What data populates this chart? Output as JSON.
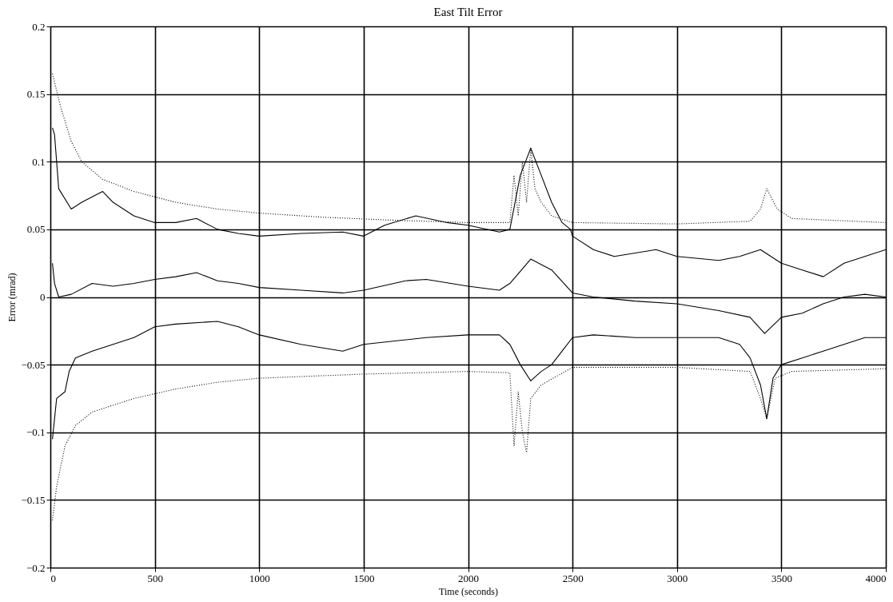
{
  "chart_data": {
    "type": "line",
    "title": "East Tilt Error",
    "xlabel": "Time (seconds)",
    "ylabel": "Error (mrad)",
    "xlim": [
      0,
      4000
    ],
    "ylim": [
      -0.2,
      0.2
    ],
    "xticks": [
      0,
      500,
      1000,
      1500,
      2000,
      2500,
      3000,
      3500,
      4000
    ],
    "yticks": [
      -0.2,
      -0.15,
      -0.1,
      -0.05,
      0,
      0.05,
      0.1,
      0.15,
      0.2
    ],
    "grid": true,
    "marker": "none",
    "series": [
      {
        "color": "#000000",
        "line_style": "dotted",
        "x": [
          10,
          50,
          100,
          150,
          250,
          400,
          600,
          800,
          1000,
          1300,
          1600,
          2000,
          2200,
          2220,
          2240,
          2260,
          2280,
          2300,
          2320,
          2350,
          2400,
          2500,
          3000,
          3350,
          3400,
          3430,
          3480,
          3550,
          4000
        ],
        "values": [
          0.165,
          0.14,
          0.115,
          0.1,
          0.087,
          0.078,
          0.07,
          0.065,
          0.062,
          0.059,
          0.057,
          0.055,
          0.055,
          0.09,
          0.06,
          0.1,
          0.07,
          0.11,
          0.08,
          0.07,
          0.06,
          0.055,
          0.054,
          0.056,
          0.065,
          0.08,
          0.065,
          0.058,
          0.055
        ]
      },
      {
        "color": "#000000",
        "line_style": "solid",
        "x": [
          10,
          20,
          30,
          40,
          100,
          150,
          250,
          300,
          400,
          500,
          600,
          700,
          800,
          900,
          1000,
          1200,
          1400,
          1500,
          1600,
          1750,
          1900,
          2000,
          2150,
          2200,
          2250,
          2300,
          2350,
          2400,
          2450,
          2490,
          2500,
          2600,
          2700,
          2900,
          3000,
          3200,
          3300,
          3400,
          3500,
          3600,
          3700,
          3800,
          3900,
          4000
        ],
        "values": [
          0.125,
          0.12,
          0.1,
          0.08,
          0.065,
          0.07,
          0.078,
          0.07,
          0.06,
          0.055,
          0.055,
          0.058,
          0.05,
          0.047,
          0.045,
          0.047,
          0.048,
          0.045,
          0.053,
          0.06,
          0.055,
          0.053,
          0.048,
          0.05,
          0.09,
          0.11,
          0.09,
          0.07,
          0.055,
          0.05,
          0.045,
          0.035,
          0.03,
          0.035,
          0.03,
          0.027,
          0.03,
          0.035,
          0.025,
          0.02,
          0.015,
          0.025,
          0.03,
          0.035
        ]
      },
      {
        "color": "#000000",
        "line_style": "solid",
        "x": [
          10,
          20,
          40,
          100,
          200,
          300,
          400,
          500,
          600,
          700,
          800,
          900,
          1000,
          1200,
          1400,
          1500,
          1700,
          1800,
          2000,
          2150,
          2200,
          2300,
          2400,
          2500,
          2600,
          2800,
          3000,
          3200,
          3350,
          3420,
          3500,
          3600,
          3700,
          3800,
          3900,
          4000
        ],
        "values": [
          0.025,
          0.01,
          0.0,
          0.002,
          0.01,
          0.008,
          0.01,
          0.013,
          0.015,
          0.018,
          0.012,
          0.01,
          0.007,
          0.005,
          0.003,
          0.005,
          0.012,
          0.013,
          0.008,
          0.005,
          0.01,
          0.028,
          0.02,
          0.003,
          0.0,
          -0.003,
          -0.005,
          -0.01,
          -0.015,
          -0.027,
          -0.015,
          -0.012,
          -0.005,
          0.0,
          0.002,
          0.0
        ]
      },
      {
        "color": "#000000",
        "line_style": "solid",
        "x": [
          10,
          30,
          70,
          90,
          120,
          200,
          300,
          400,
          500,
          600,
          800,
          900,
          1000,
          1200,
          1400,
          1500,
          1800,
          2000,
          2150,
          2200,
          2250,
          2300,
          2350,
          2400,
          2450,
          2500,
          2600,
          2800,
          3000,
          3200,
          3300,
          3350,
          3400,
          3430,
          3460,
          3500,
          3600,
          3700,
          3800,
          3900,
          4000
        ],
        "values": [
          -0.105,
          -0.075,
          -0.07,
          -0.055,
          -0.045,
          -0.04,
          -0.035,
          -0.03,
          -0.022,
          -0.02,
          -0.018,
          -0.022,
          -0.028,
          -0.035,
          -0.04,
          -0.035,
          -0.03,
          -0.028,
          -0.028,
          -0.035,
          -0.05,
          -0.062,
          -0.055,
          -0.05,
          -0.04,
          -0.03,
          -0.028,
          -0.03,
          -0.03,
          -0.03,
          -0.035,
          -0.045,
          -0.065,
          -0.09,
          -0.06,
          -0.05,
          -0.045,
          -0.04,
          -0.035,
          -0.03,
          -0.03
        ]
      },
      {
        "color": "#000000",
        "line_style": "dotted",
        "x": [
          10,
          30,
          70,
          120,
          200,
          400,
          600,
          800,
          1000,
          1500,
          2000,
          2200,
          2220,
          2240,
          2260,
          2280,
          2300,
          2350,
          2500,
          3000,
          3350,
          3400,
          3430,
          3470,
          3550,
          4000
        ],
        "values": [
          -0.165,
          -0.14,
          -0.11,
          -0.095,
          -0.085,
          -0.075,
          -0.068,
          -0.063,
          -0.06,
          -0.057,
          -0.055,
          -0.056,
          -0.11,
          -0.07,
          -0.1,
          -0.115,
          -0.075,
          -0.065,
          -0.052,
          -0.052,
          -0.055,
          -0.075,
          -0.09,
          -0.06,
          -0.055,
          -0.053
        ]
      }
    ]
  }
}
